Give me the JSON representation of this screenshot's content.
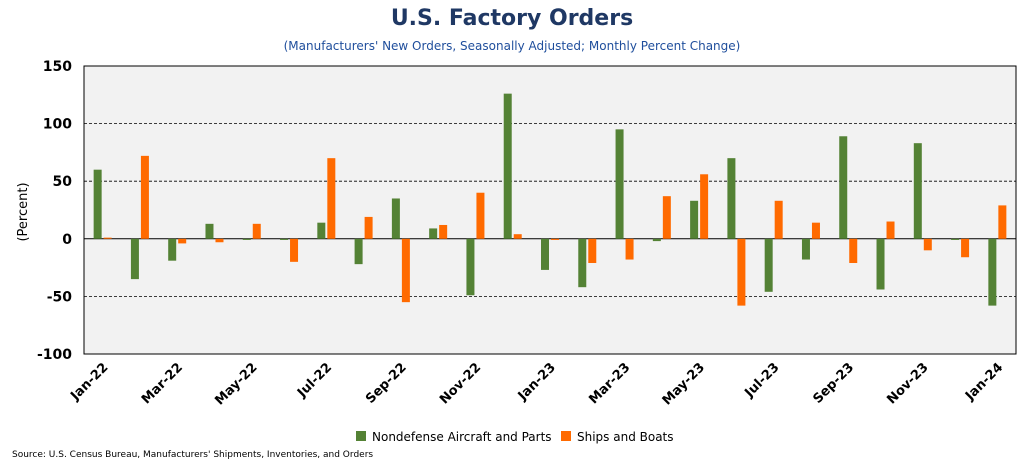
{
  "chart_data": {
    "type": "bar",
    "title": "U.S. Factory Orders",
    "subtitle": "(Manufacturers' New Orders, Seasonally Adjusted; Monthly Percent Change)",
    "ylabel": "(Percent)",
    "ylim": [
      -100,
      150
    ],
    "yticks": [
      -100,
      -50,
      0,
      50,
      100,
      150
    ],
    "grid": "horizontal-dashed",
    "legend_position": "bottom",
    "categories": [
      "Jan-22",
      "Feb-22",
      "Mar-22",
      "Apr-22",
      "May-22",
      "Jun-22",
      "Jul-22",
      "Aug-22",
      "Sep-22",
      "Oct-22",
      "Nov-22",
      "Dec-22",
      "Jan-23",
      "Feb-23",
      "Mar-23",
      "Apr-23",
      "May-23",
      "Jun-23",
      "Jul-23",
      "Aug-23",
      "Sep-23",
      "Oct-23",
      "Nov-23",
      "Dec-23",
      "Jan-24"
    ],
    "tick_labels": [
      "Jan-22",
      "Mar-22",
      "May-22",
      "Jul-22",
      "Sep-22",
      "Nov-22",
      "Jan-23",
      "Mar-23",
      "May-23",
      "Jul-23",
      "Sep-23",
      "Nov-23",
      "Jan-24"
    ],
    "series": [
      {
        "name": "Nondefense Aircraft and Parts",
        "color": "#548235",
        "values": [
          60,
          -35,
          -19,
          13,
          -1,
          -1,
          14,
          -22,
          35,
          9,
          -49,
          126,
          -27,
          -42,
          95,
          -2,
          33,
          70,
          -46,
          -18,
          89,
          -44,
          83,
          -1,
          -58
        ]
      },
      {
        "name": "Ships and Boats",
        "color": "#ff6a00",
        "values": [
          1,
          72,
          -4,
          -3,
          13,
          -20,
          70,
          19,
          -55,
          12,
          40,
          4,
          -1,
          -21,
          -18,
          37,
          56,
          -58,
          33,
          14,
          -21,
          15,
          -10,
          -16,
          29
        ]
      }
    ]
  },
  "source": "Source: U.S. Census Bureau, Manufacturers' Shipments, Inventories, and Orders"
}
